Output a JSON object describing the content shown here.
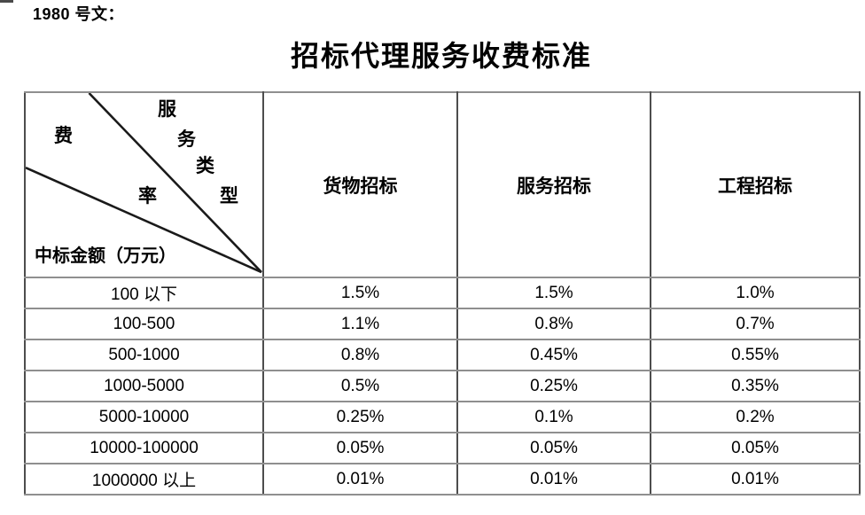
{
  "document": {
    "doc_number": "1980 号文：",
    "title": "招标代理服务收费标准"
  },
  "table": {
    "corner": {
      "fee_rate_chars": [
        "费",
        "率"
      ],
      "service_type_chars": [
        "服",
        "务",
        "类",
        "型"
      ],
      "amount_label": "中标金额（万元）"
    },
    "columns": [
      "货物招标",
      "服务招标",
      "工程招标"
    ],
    "rows": [
      {
        "range": "100 以下",
        "values": [
          "1.5%",
          "1.5%",
          "1.0%"
        ]
      },
      {
        "range": "100-500",
        "values": [
          "1.1%",
          "0.8%",
          "0.7%"
        ]
      },
      {
        "range": "500-1000",
        "values": [
          "0.8%",
          "0.45%",
          "0.55%"
        ]
      },
      {
        "range": "1000-5000",
        "values": [
          "0.5%",
          "0.25%",
          "0.35%"
        ]
      },
      {
        "range": "5000-10000",
        "values": [
          "0.25%",
          "0.1%",
          "0.2%"
        ]
      },
      {
        "range": "10000-100000",
        "values": [
          "0.05%",
          "0.05%",
          "0.05%"
        ]
      },
      {
        "range": "1000000 以上",
        "values": [
          "0.01%",
          "0.01%",
          "0.01%"
        ]
      }
    ]
  },
  "colors": {
    "background": "#ffffff",
    "text": "#000000",
    "border_vertical": "#4d4d4d",
    "border_horizontal": "#8f8f8f",
    "diagonal": "#1a1a1a"
  }
}
